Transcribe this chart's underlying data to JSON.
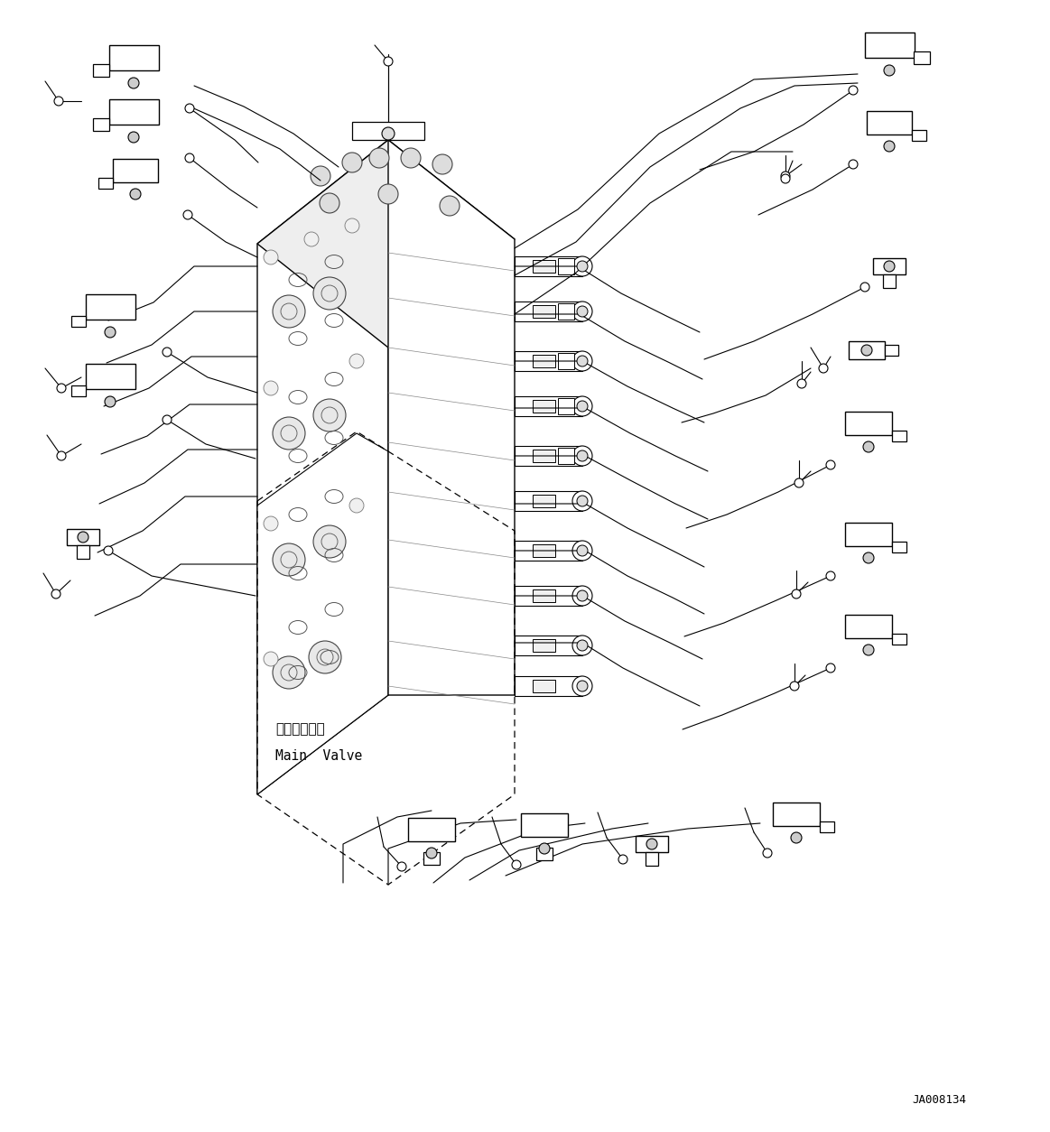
{
  "bg_color": "#ffffff",
  "line_color": "#000000",
  "fig_width": 11.63,
  "fig_height": 12.54,
  "dpi": 100,
  "label_main_valve_ja": "メインバルブ",
  "label_main_valve_en": "Main  Valve",
  "ref_code": "JA008134"
}
